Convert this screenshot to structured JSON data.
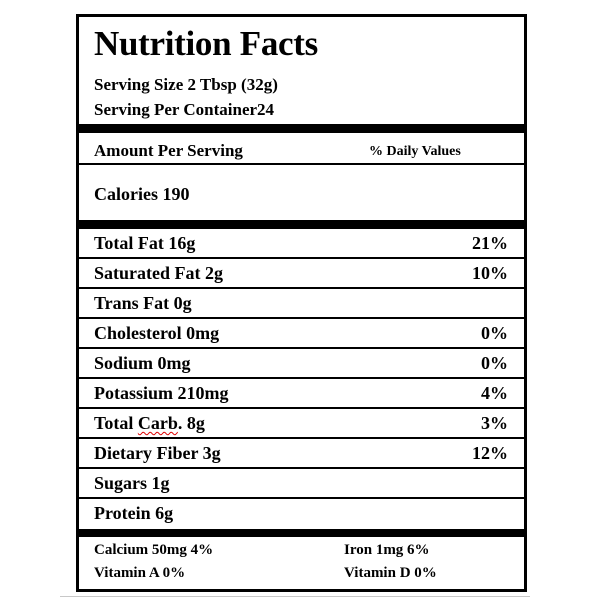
{
  "title": "Nutrition Facts",
  "serving_size": "Serving Size 2 Tbsp (32g)",
  "servings_per_container": "Serving Per Container24",
  "amount_per_serving": "Amount Per Serving",
  "daily_values_header": "% Daily Values",
  "calories": "Calories 190",
  "nutrients": [
    {
      "name": "Total Fat 16g",
      "pct": "21%"
    },
    {
      "name": "Saturated Fat 2g",
      "pct": "10%"
    },
    {
      "name": "Trans Fat 0g",
      "pct": ""
    },
    {
      "name": "Cholesterol 0mg",
      "pct": "0%"
    },
    {
      "name": "Sodium 0mg",
      "pct": "0%"
    },
    {
      "name": "Potassium 210mg",
      "pct": "4%"
    },
    {
      "name_prefix": "Total ",
      "name_flagged": "Carb",
      "name_suffix": ". 8g",
      "pct": "3%"
    },
    {
      "name": "Dietary Fiber 3g",
      "pct": "12%"
    },
    {
      "name": "Sugars 1g",
      "pct": ""
    },
    {
      "name": "Protein 6g",
      "pct": ""
    }
  ],
  "footer": {
    "calcium": "Calcium 50mg 4%",
    "iron": "Iron 1mg 6%",
    "vitamin_a": "Vitamin A 0%",
    "vitamin_d": "Vitamin D 0%"
  }
}
